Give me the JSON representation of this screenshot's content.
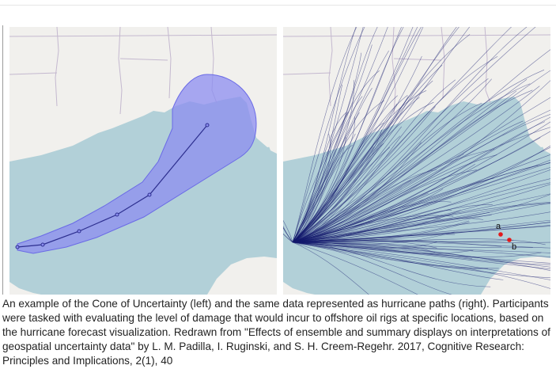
{
  "figure": {
    "left_panel": {
      "type": "cone-of-uncertainty-map",
      "track_markers": 7
    },
    "right_panel": {
      "type": "hurricane-paths-map",
      "markers": [
        {
          "label": "a",
          "color": "#e21b1b"
        },
        {
          "label": "b",
          "color": "#e21b1b"
        }
      ]
    },
    "colors": {
      "water": "#b2d0d8",
      "land": "#f1f0ed",
      "border": "#c4b8cf",
      "cone_fill": "#8c8ef0",
      "cone_stroke": "#6a6ae6",
      "track": "#2d2f8f",
      "paths": "#14196e"
    }
  },
  "caption": "An example of the Cone of Uncertainty (left) and the same data represented as hurricane paths (right). Participants were tasked with evaluating the level of damage that would incur to offshore oil rigs at specific locations, based on the hurricane forecast visualization. Redrawn from \"Effects of ensemble and summary displays on interpretations of geospatial uncertainty data\" by L. M. Padilla, I. Ruginski, and S. H. Creem-Regehr. 2017, Cognitive Research: Principles and Implications, 2(1), 40"
}
